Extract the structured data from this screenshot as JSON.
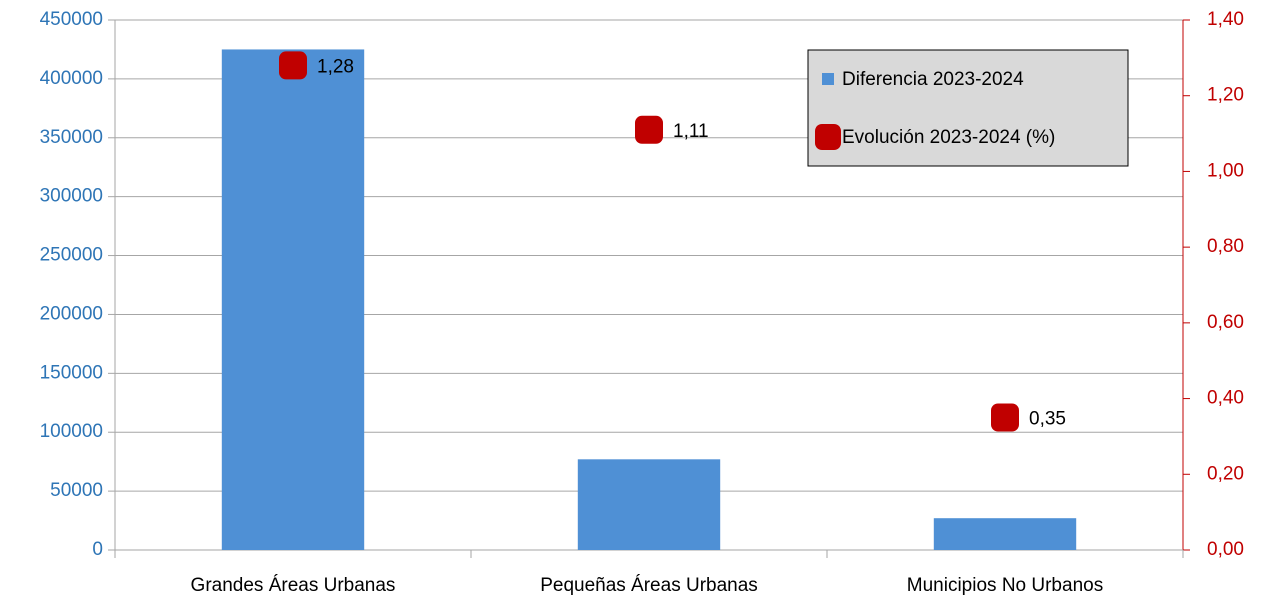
{
  "chart_data": {
    "type": "bar",
    "categories": [
      "Grandes Áreas Urbanas",
      "Pequeñas Áreas Urbanas",
      "Municipios No Urbanos"
    ],
    "series": [
      {
        "name": "Diferencia 2023-2024",
        "type": "bar",
        "color": "#4f90d5",
        "values": [
          425000,
          77000,
          27000
        ]
      },
      {
        "name": "Evolución 2023-2024 (%)",
        "type": "scatter",
        "axis": "y2",
        "color": "#c00000",
        "values": [
          1.28,
          1.11,
          0.35
        ],
        "value_labels": [
          "1,28",
          "1,11",
          "0,35"
        ]
      }
    ],
    "ylim": [
      0,
      450000
    ],
    "yticks": [
      0,
      50000,
      100000,
      150000,
      200000,
      250000,
      300000,
      350000,
      400000,
      450000
    ],
    "y2lim": [
      0,
      1.4
    ],
    "y2ticks": [
      {
        "value": 0,
        "label": "0,00"
      },
      {
        "value": 0.2,
        "label": "0,20"
      },
      {
        "value": 0.4,
        "label": "0,40"
      },
      {
        "value": 0.6,
        "label": "0,60"
      },
      {
        "value": 0.8,
        "label": "0,80"
      },
      {
        "value": 1.0,
        "label": "1,00"
      },
      {
        "value": 1.2,
        "label": "1,20"
      },
      {
        "value": 1.4,
        "label": "1,40"
      }
    ],
    "grid": true,
    "legend": "top-right"
  }
}
